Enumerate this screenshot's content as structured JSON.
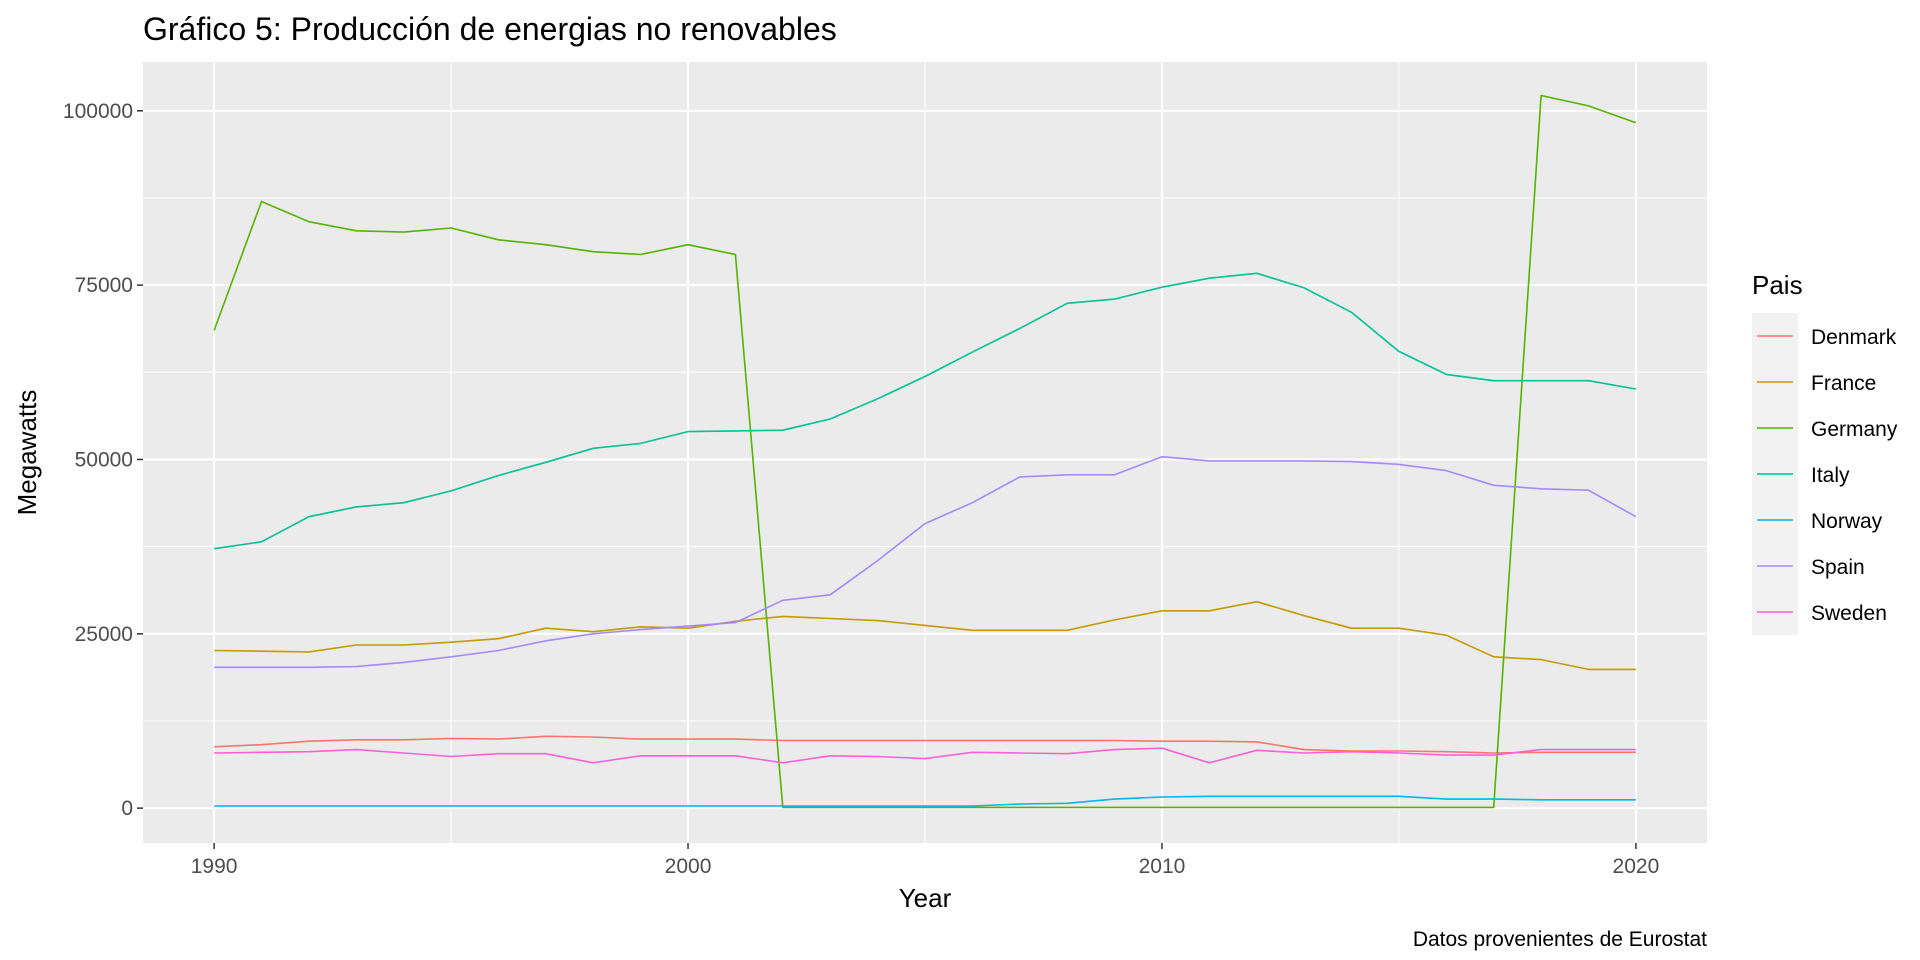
{
  "chart_data": {
    "type": "line",
    "title": "Gráfico 5: Producción de energias no renovables",
    "xlabel": "Year",
    "ylabel": "Megawatts",
    "caption": "Datos provenientes de Eurostat",
    "legend_title": "Pais",
    "legend_position": "right",
    "grid": true,
    "xlim": [
      1988.5,
      2021.5
    ],
    "ylim": [
      -5000,
      107000
    ],
    "x_ticks": [
      1990,
      2000,
      2010,
      2020
    ],
    "y_ticks": [
      0,
      25000,
      50000,
      75000,
      100000
    ],
    "x_tick_labels": [
      "1990",
      "2000",
      "2010",
      "2020"
    ],
    "y_tick_labels": [
      "0",
      "25000",
      "50000",
      "75000",
      "100000"
    ],
    "x": [
      1990,
      1991,
      1992,
      1993,
      1994,
      1995,
      1996,
      1997,
      1998,
      1999,
      2000,
      2001,
      2002,
      2003,
      2004,
      2005,
      2006,
      2007,
      2008,
      2009,
      2010,
      2011,
      2012,
      2013,
      2014,
      2015,
      2016,
      2017,
      2018,
      2019,
      2020
    ],
    "series": [
      {
        "name": "Denmark",
        "color": "#F8766D",
        "values": [
          8800,
          9100,
          9600,
          9800,
          9800,
          10000,
          9900,
          10300,
          10200,
          9900,
          9900,
          9900,
          9700,
          9700,
          9700,
          9700,
          9700,
          9700,
          9700,
          9700,
          9600,
          9600,
          9500,
          8400,
          8200,
          8200,
          8100,
          7900,
          8000,
          8000,
          8000
        ]
      },
      {
        "name": "France",
        "color": "#C49A00",
        "values": [
          22600,
          22500,
          22400,
          23400,
          23400,
          23800,
          24300,
          25800,
          25300,
          26000,
          25800,
          26800,
          27500,
          27200,
          26900,
          26200,
          25500,
          25500,
          25500,
          27000,
          28300,
          28300,
          29600,
          27600,
          25800,
          25800,
          24800,
          21700,
          21300,
          19900,
          19900
        ]
      },
      {
        "name": "Germany",
        "color": "#53B400",
        "values": [
          68500,
          87000,
          84100,
          82800,
          82600,
          83200,
          81500,
          80800,
          79800,
          79400,
          80800,
          79400,
          100,
          100,
          100,
          100,
          100,
          100,
          100,
          100,
          100,
          100,
          100,
          100,
          100,
          100,
          100,
          100,
          102200,
          100700,
          98300
        ]
      },
      {
        "name": "Italy",
        "color": "#00C094",
        "values": [
          37200,
          38200,
          41800,
          43200,
          43800,
          45500,
          47700,
          49600,
          51600,
          52300,
          54000,
          54100,
          54200,
          55800,
          58700,
          61900,
          65400,
          68800,
          72400,
          73000,
          74700,
          76000,
          76700,
          74600,
          71100,
          65500,
          62200,
          61300,
          61300,
          61300,
          60100
        ]
      },
      {
        "name": "Norway",
        "color": "#00B6EB",
        "values": [
          300,
          300,
          300,
          300,
          300,
          300,
          300,
          300,
          300,
          300,
          300,
          300,
          300,
          300,
          300,
          300,
          300,
          600,
          700,
          1300,
          1600,
          1700,
          1700,
          1700,
          1700,
          1700,
          1300,
          1300,
          1200,
          1200,
          1200
        ]
      },
      {
        "name": "Spain",
        "color": "#A58AFF",
        "values": [
          20200,
          20200,
          20200,
          20300,
          20900,
          21700,
          22600,
          24000,
          25000,
          25600,
          26100,
          26600,
          29800,
          30600,
          35500,
          40800,
          43800,
          47500,
          47800,
          47800,
          50400,
          49800,
          49800,
          49800,
          49700,
          49300,
          48400,
          46300,
          45800,
          45600,
          41800
        ]
      },
      {
        "name": "Sweden",
        "color": "#FB61D7",
        "values": [
          7900,
          8000,
          8100,
          8400,
          7900,
          7400,
          7800,
          7800,
          6500,
          7500,
          7500,
          7500,
          6500,
          7500,
          7400,
          7100,
          8000,
          7900,
          7800,
          8400,
          8600,
          6500,
          8300,
          7900,
          8100,
          7900,
          7600,
          7600,
          8400,
          8400,
          8400
        ]
      }
    ]
  }
}
